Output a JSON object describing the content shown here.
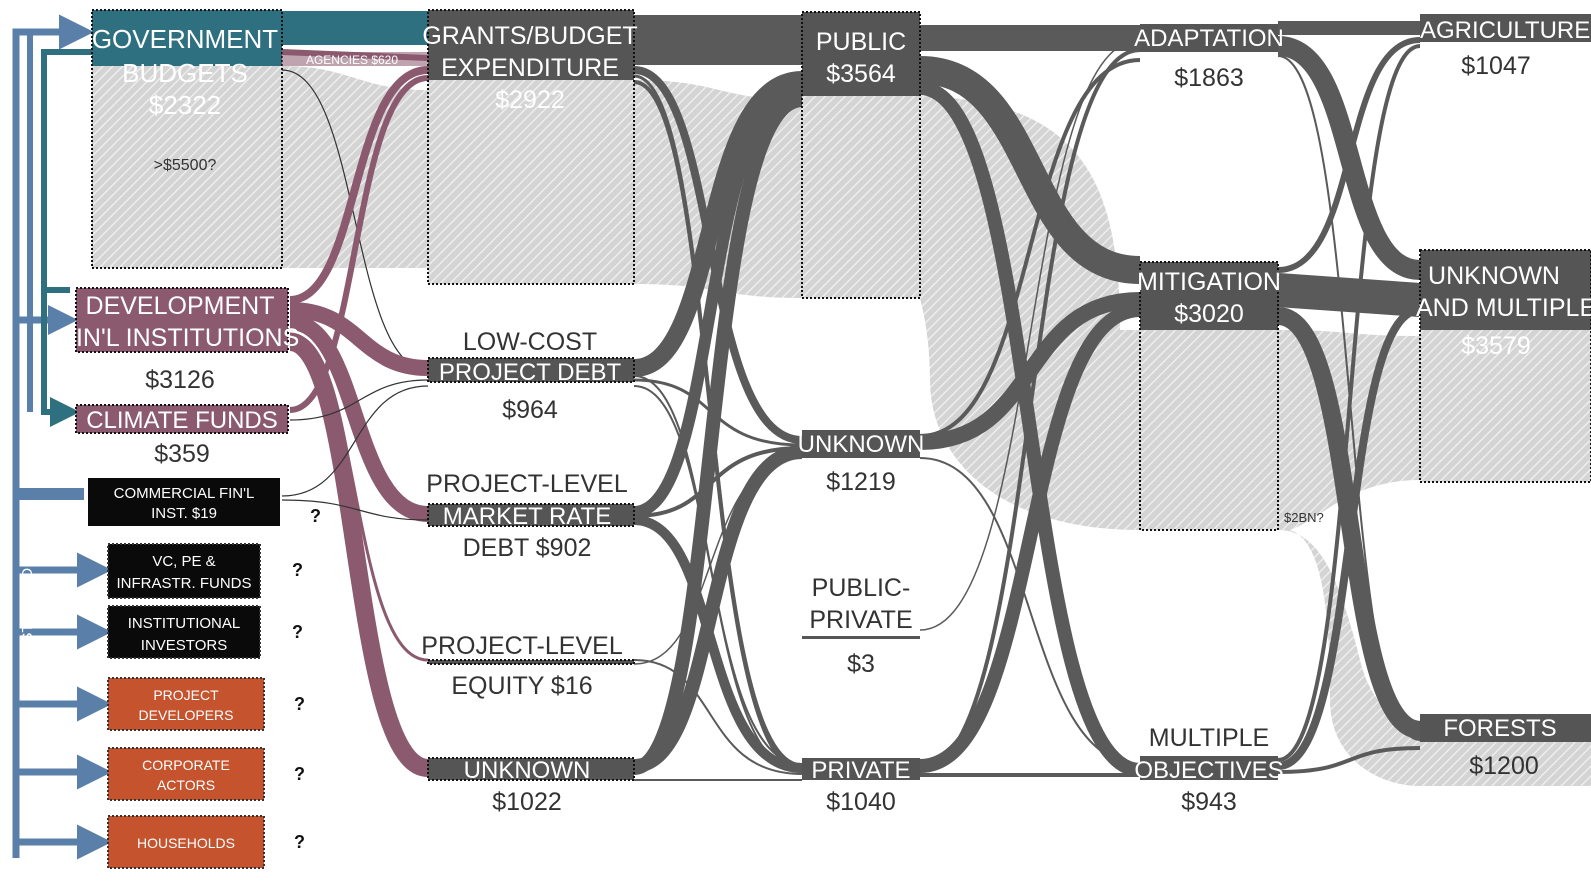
{
  "colors": {
    "government": "#2e6f80",
    "development": "#8b5a6e",
    "node_dark": "#555555",
    "black_node": "#0a0a0a",
    "orange_node": "#c4532e",
    "arrow_blue": "#5a7fa8",
    "flow_grey": "#5a5a5a",
    "estimate_grey": "#c8c8c8"
  },
  "sources": {
    "government": {
      "line1": "GOVERNMENT",
      "line2": "BUDGETS",
      "value": "$2322",
      "estimate": ">$5500?"
    },
    "agencies": "AGENCIES $620",
    "development": {
      "line1": "DEVELOPMENT",
      "line2": "FIN'L INSTITUTIONS",
      "value": "$3126"
    },
    "climate_funds": {
      "label": "CLIMATE FUNDS",
      "value": "$359"
    },
    "commercial": {
      "line1": "COMMERCIAL FIN'L",
      "line2": "INST. $19"
    },
    "vc": {
      "line1": "VC, PE &",
      "line2": "INFRASTR. FUNDS"
    },
    "institutional": {
      "line1": "INSTITUTIONAL",
      "line2": "INVESTORS"
    },
    "project_dev": {
      "line1": "PROJECT",
      "line2": "DEVELOPERS"
    },
    "corporate": {
      "line1": "CORPORATE",
      "line2": "ACTORS"
    },
    "households": {
      "label": "HOUSEHOLDS"
    },
    "question": "?",
    "not_estimated": "NOT ESTIMATED"
  },
  "instruments": {
    "grants": {
      "line1": "GRANTS/BUDGET",
      "line2": "EXPENDITURE",
      "value": "$2922"
    },
    "low_cost": {
      "line1": "LOW-COST",
      "line2": "PROJECT DEBT",
      "value": "$964"
    },
    "market_rate": {
      "line1": "PROJECT-LEVEL",
      "line2": "MARKET RATE",
      "line3": "DEBT $902"
    },
    "equity": {
      "line1": "PROJECT-LEVEL",
      "line2": "EQUITY $16"
    },
    "unknown": {
      "label": "UNKNOWN",
      "value": "$1022"
    }
  },
  "recipients": {
    "public": {
      "line1": "PUBLIC",
      "line2": "$3564"
    },
    "unknown": {
      "label": "UNKNOWN",
      "value": "$1219"
    },
    "public_private": {
      "line1": "PUBLIC-",
      "line2": "PRIVATE",
      "value": "$3"
    },
    "private": {
      "label": "PRIVATE",
      "value": "$1040"
    }
  },
  "uses": {
    "adaptation": {
      "label": "ADAPTATION",
      "value": "$1863"
    },
    "mitigation": {
      "line1": "MITIGATION",
      "line2": "$3020"
    },
    "estimate": "$2BN?",
    "multiple": {
      "line1": "MULTIPLE",
      "line2": "OBJECTIVES",
      "value": "$943"
    }
  },
  "sectors": {
    "agriculture": {
      "label": "AGRICULTURE",
      "value": "$1047"
    },
    "unknown": {
      "line1": "UNKNOWN",
      "line2": "AND MULTIPLE",
      "value": "$3579"
    },
    "forests": {
      "label": "FORESTS",
      "value": "$1200"
    }
  }
}
